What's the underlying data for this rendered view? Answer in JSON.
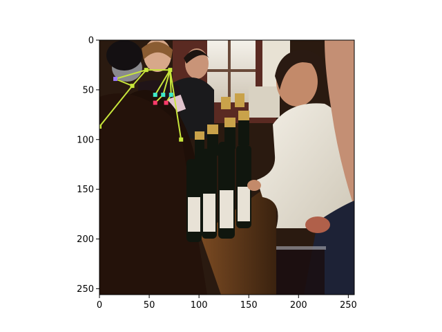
{
  "figure": {
    "image_description_icon": "photo-wine-tasting-scene",
    "x_axis": {
      "ticks": [
        0,
        50,
        100,
        150,
        200,
        250
      ],
      "range": [
        0,
        256
      ]
    },
    "y_axis": {
      "ticks": [
        0,
        50,
        100,
        150,
        200,
        250
      ],
      "range": [
        0,
        256
      ]
    },
    "pose_overlay": {
      "line_color": "#c8e63c",
      "keypoints": [
        {
          "x": 16,
          "y": 39,
          "color": "#9b7bff"
        },
        {
          "x": 33,
          "y": 46,
          "color": "#c8e63c"
        },
        {
          "x": 47,
          "y": 30,
          "color": "#c8e63c"
        },
        {
          "x": 71,
          "y": 30,
          "color": "#c8e63c"
        },
        {
          "x": 56,
          "y": 55,
          "color": "#3ee8c8"
        },
        {
          "x": 64,
          "y": 55,
          "color": "#3ee8c8"
        },
        {
          "x": 72,
          "y": 55,
          "color": "#3ee8c8"
        },
        {
          "x": 56,
          "y": 63,
          "color": "#ff3b6b"
        },
        {
          "x": 67,
          "y": 63,
          "color": "#ff3b6b"
        },
        {
          "x": 0,
          "y": 87,
          "color": "#c8e63c"
        },
        {
          "x": 82,
          "y": 100,
          "color": "#c8e63c"
        }
      ],
      "edges": [
        [
          0,
          1
        ],
        [
          1,
          2
        ],
        [
          2,
          3
        ],
        [
          3,
          4
        ],
        [
          3,
          5
        ],
        [
          3,
          6
        ],
        [
          5,
          7
        ],
        [
          6,
          8
        ],
        [
          1,
          9
        ],
        [
          3,
          10
        ],
        [
          0,
          2
        ]
      ]
    }
  }
}
